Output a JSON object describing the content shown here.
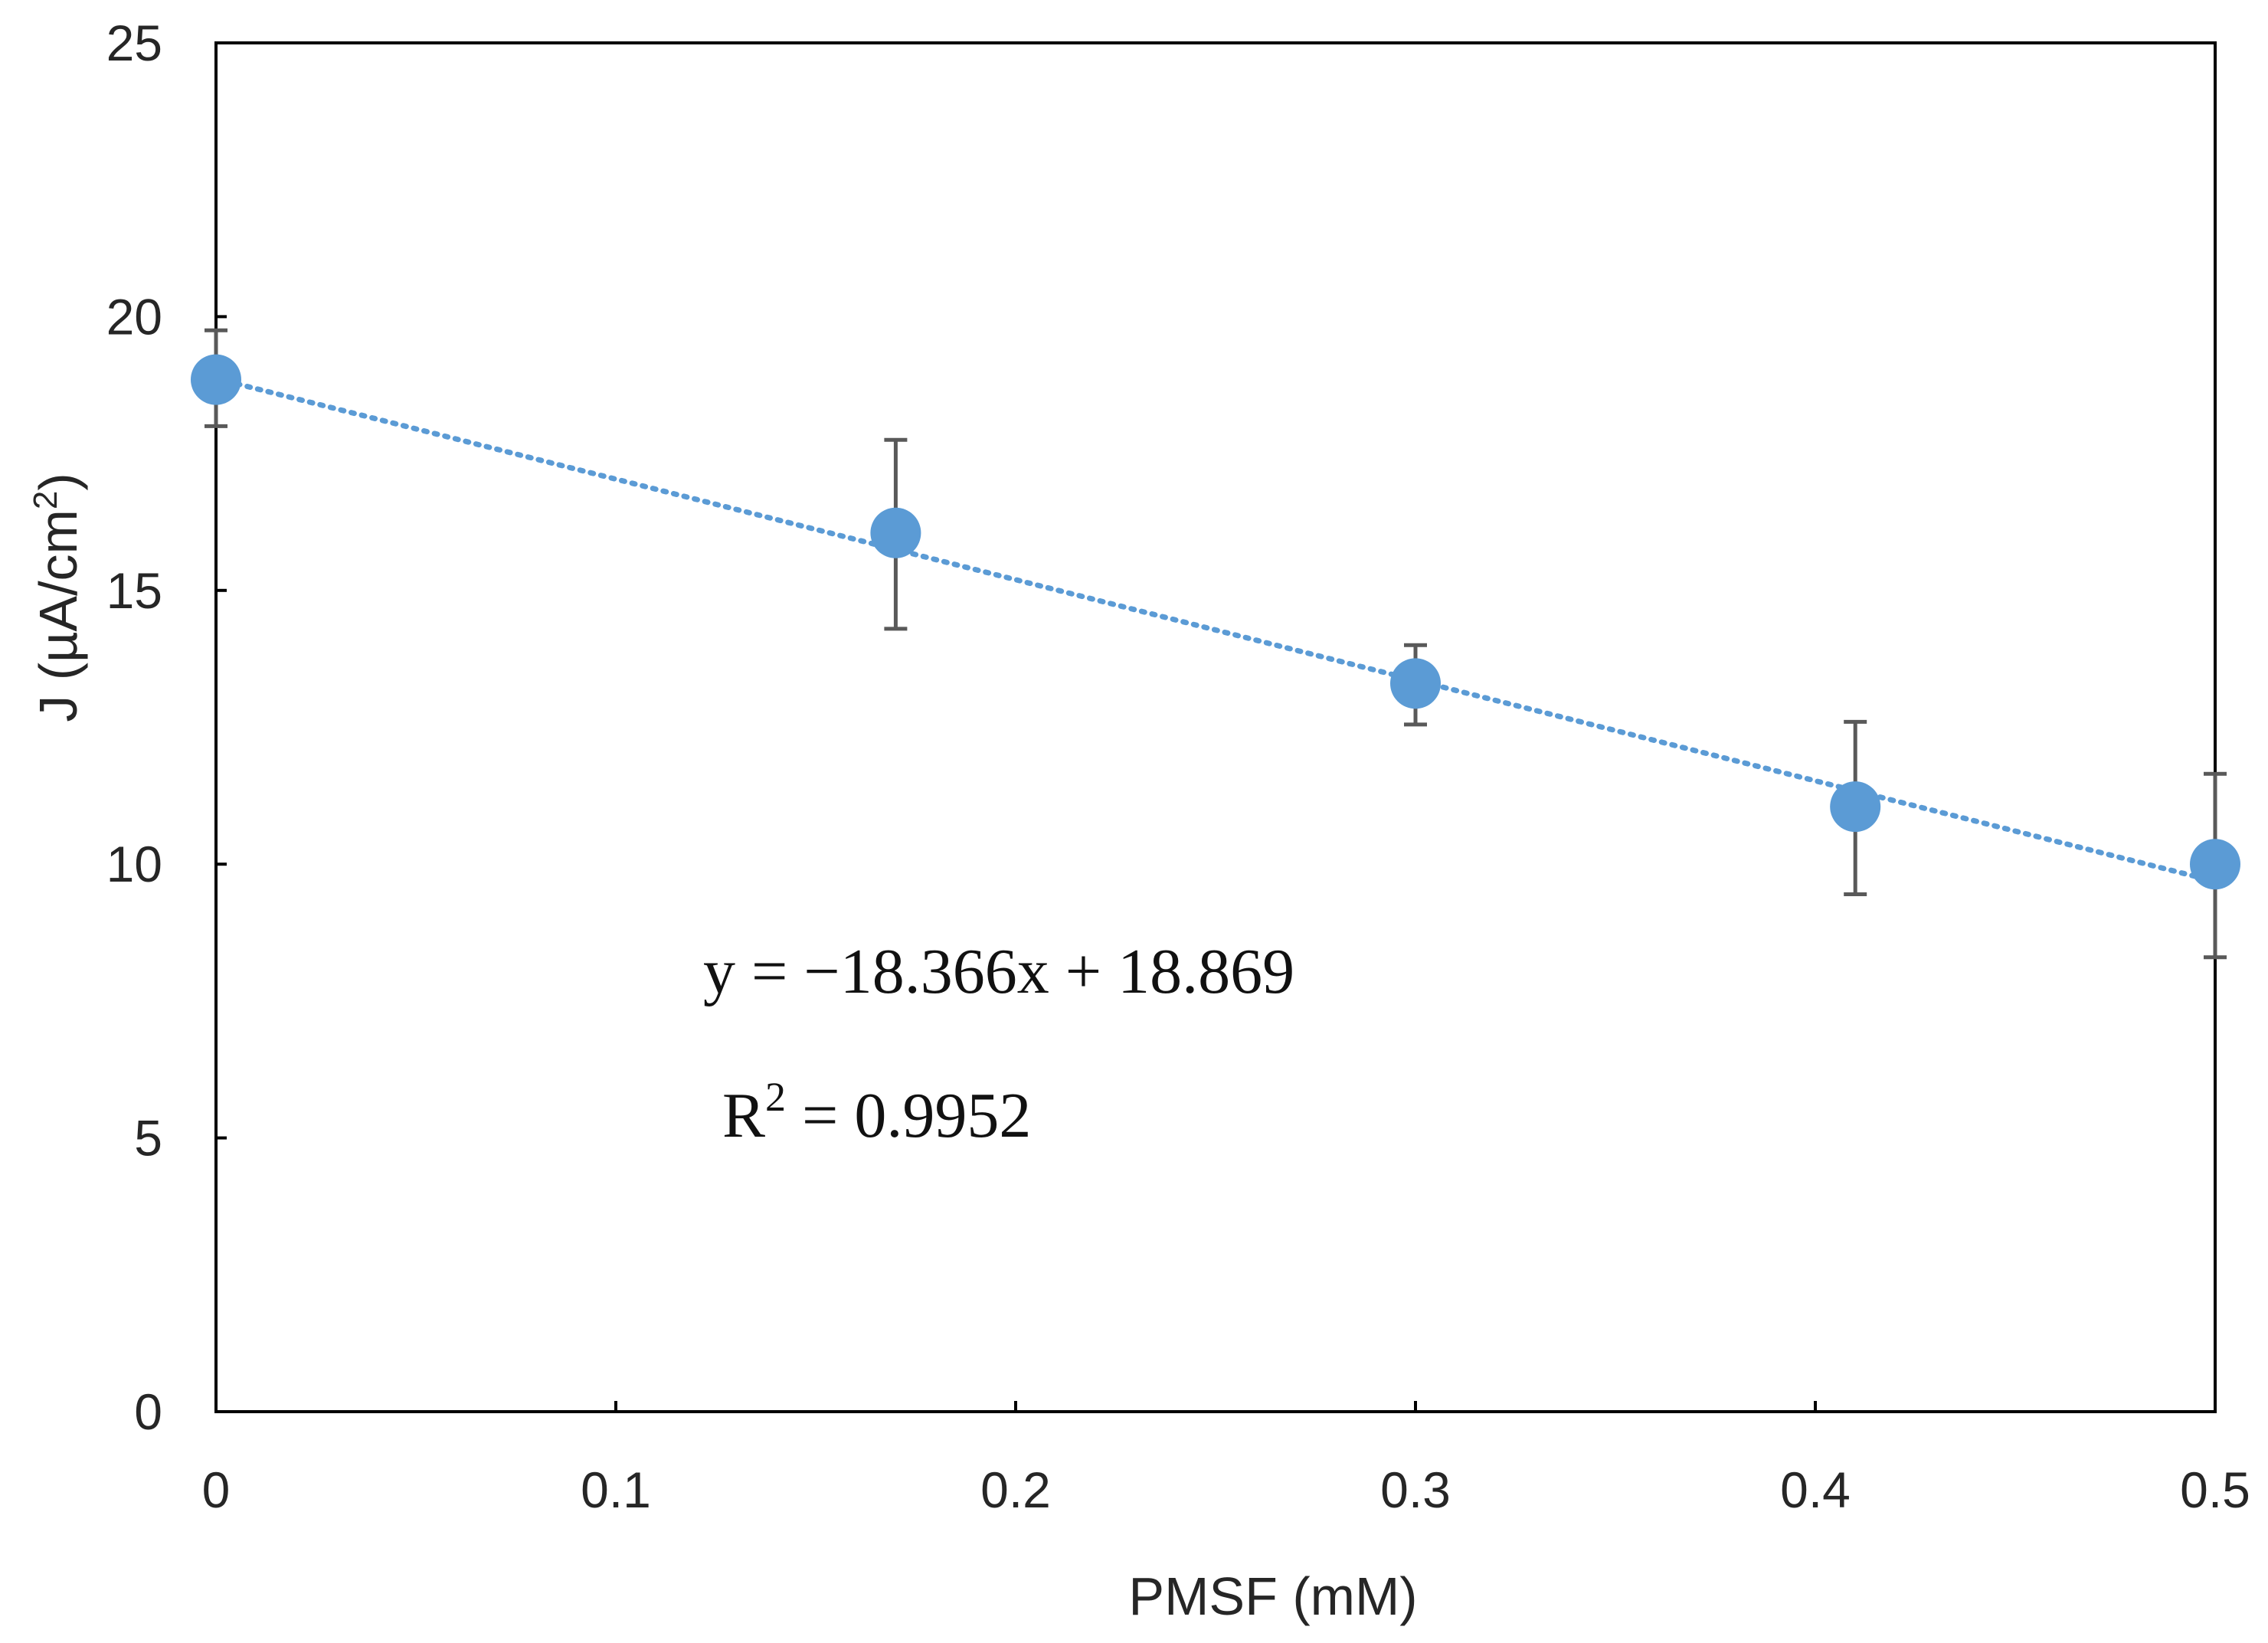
{
  "chart_data": {
    "type": "scatter",
    "xlabel": "PMSF (mM)",
    "ylabel": {
      "main": "J (µA/cm",
      "sup": "2",
      "close": ")"
    },
    "xlim": [
      0,
      0.5
    ],
    "ylim": [
      0,
      25
    ],
    "xticks": [
      "0",
      "0.1",
      "0.2",
      "0.3",
      "0.4",
      "0.5"
    ],
    "xtick_values": [
      0,
      0.1,
      0.2,
      0.3,
      0.4,
      0.5
    ],
    "yticks": [
      "0",
      "5",
      "10",
      "15",
      "20",
      "25"
    ],
    "ytick_values": [
      0,
      5,
      10,
      15,
      20,
      25
    ],
    "grid": false,
    "series": [
      {
        "name": "J",
        "x": [
          0,
          0.17,
          0.3,
          0.41,
          0.5
        ],
        "y": [
          18.85,
          16.05,
          13.3,
          11.05,
          10.0
        ],
        "error_low": [
          18.0,
          14.3,
          12.55,
          9.45,
          8.3
        ],
        "error_high": [
          19.75,
          17.75,
          14.0,
          12.6,
          11.65
        ],
        "color": "#5B9BD5"
      }
    ],
    "trendline": {
      "type": "linear",
      "slope": -18.366,
      "intercept": 18.869,
      "color": "#5B9BD5",
      "style": "dotted"
    },
    "annotations": {
      "equation": "y = −18.366x + 18.869",
      "r2_prefix": "R",
      "r2_sup": "2",
      "r2_value": " = 0.9952"
    }
  },
  "colors": {
    "axis": "#000000",
    "error_bar": "#595959",
    "marker": "#5B9BD5"
  }
}
